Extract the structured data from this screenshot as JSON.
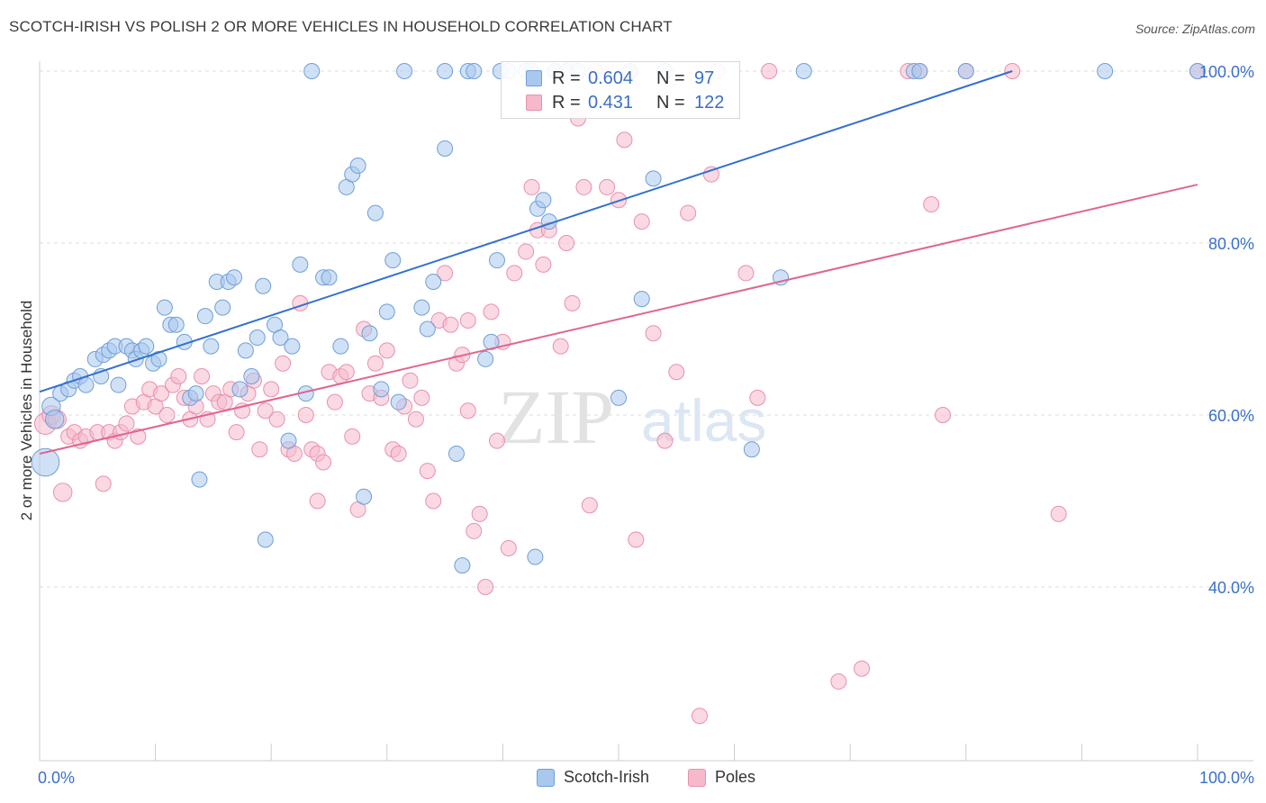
{
  "title": "SCOTCH-IRISH VS POLISH 2 OR MORE VEHICLES IN HOUSEHOLD CORRELATION CHART",
  "source": "Source: ZipAtlas.com",
  "watermark": {
    "zip": "ZIP",
    "atlas": "atlas"
  },
  "legend": {
    "r_label": "R =",
    "n_label": "N =",
    "series1": {
      "r": "0.604",
      "n": "97"
    },
    "series2": {
      "r": "0.431",
      "n": "122"
    }
  },
  "bottom_legend": {
    "series1": "Scotch-Irish",
    "series2": "Poles"
  },
  "colors": {
    "blue_fill": "#a9c8ee",
    "blue_stroke": "#6f9fd8",
    "blue_line": "#3270d0",
    "pink_fill": "#f6b9cc",
    "pink_stroke": "#e990ad",
    "pink_line": "#e0658f",
    "tick_text": "#3b6fc9",
    "grid": "#dddddd"
  },
  "chart_data": {
    "type": "scatter",
    "title": "SCOTCH-IRISH VS POLISH 2 OR MORE VEHICLES IN HOUSEHOLD CORRELATION CHART",
    "xlabel": "",
    "ylabel": "2 or more Vehicles in Household",
    "xlim": [
      0,
      100
    ],
    "ylim": [
      20,
      102
    ],
    "x_tick_labels": [
      "0.0%",
      "100.0%"
    ],
    "y_ticks": [
      40,
      60,
      80,
      100
    ],
    "y_tick_labels": [
      "40.0%",
      "60.0%",
      "80.0%",
      "100.0%"
    ],
    "series": [
      {
        "name": "Scotch-Irish",
        "r": 0.604,
        "n": 97,
        "trend": {
          "x": [
            0,
            84
          ],
          "y": [
            62.7,
            100.0
          ]
        },
        "points": [
          [
            0.5,
            54.5,
            18
          ],
          [
            1.0,
            61,
            12
          ],
          [
            1.3,
            59.5,
            12
          ],
          [
            1.8,
            62.5,
            10
          ],
          [
            2.5,
            63,
            10
          ],
          [
            3,
            64,
            10
          ],
          [
            3.5,
            64.5,
            10
          ],
          [
            4,
            63.5,
            10
          ],
          [
            4.8,
            66.5,
            10
          ],
          [
            5.3,
            64.5,
            10
          ],
          [
            5.5,
            67,
            10
          ],
          [
            6,
            67.5,
            10
          ],
          [
            6.5,
            68,
            10
          ],
          [
            6.8,
            63.5,
            10
          ],
          [
            7.5,
            68,
            10
          ],
          [
            8,
            67.5,
            10
          ],
          [
            8.3,
            66.5,
            10
          ],
          [
            8.8,
            67.5,
            10
          ],
          [
            9.2,
            68,
            10
          ],
          [
            9.8,
            66,
            10
          ],
          [
            10.3,
            66.5,
            10
          ],
          [
            10.8,
            72.5,
            10
          ],
          [
            11.3,
            70.5,
            10
          ],
          [
            11.8,
            70.5,
            10
          ],
          [
            12.5,
            68.5,
            10
          ],
          [
            13,
            62,
            10
          ],
          [
            13.5,
            62.5,
            10
          ],
          [
            13.8,
            52.5,
            10
          ],
          [
            14.3,
            71.5,
            10
          ],
          [
            14.8,
            68,
            10
          ],
          [
            15.3,
            75.5,
            10
          ],
          [
            15.8,
            72.5,
            10
          ],
          [
            16.3,
            75.5,
            10
          ],
          [
            16.8,
            76,
            10
          ],
          [
            17.3,
            63,
            10
          ],
          [
            17.8,
            67.5,
            10
          ],
          [
            18.3,
            64.5,
            10
          ],
          [
            18.8,
            69,
            10
          ],
          [
            19.3,
            75,
            10
          ],
          [
            19.5,
            45.5,
            10
          ],
          [
            20.3,
            70.5,
            10
          ],
          [
            20.8,
            69,
            10
          ],
          [
            21.5,
            57,
            10
          ],
          [
            21.8,
            68,
            10
          ],
          [
            22.5,
            77.5,
            10
          ],
          [
            23,
            62.5,
            10
          ],
          [
            23.5,
            100,
            10
          ],
          [
            24.5,
            76,
            10
          ],
          [
            25,
            76,
            10
          ],
          [
            26,
            68,
            10
          ],
          [
            26.5,
            86.5,
            10
          ],
          [
            27,
            88,
            10
          ],
          [
            27.5,
            89,
            10
          ],
          [
            28,
            50.5,
            10
          ],
          [
            28.5,
            69.5,
            10
          ],
          [
            29,
            83.5,
            10
          ],
          [
            29.5,
            63,
            10
          ],
          [
            30,
            72,
            10
          ],
          [
            30.5,
            78,
            10
          ],
          [
            31,
            61.5,
            10
          ],
          [
            31.5,
            100,
            10
          ],
          [
            33,
            72.5,
            10
          ],
          [
            33.5,
            70,
            10
          ],
          [
            34,
            75.5,
            10
          ],
          [
            35,
            91,
            10
          ],
          [
            35,
            100,
            10
          ],
          [
            36,
            55.5,
            10
          ],
          [
            36.5,
            42.5,
            10
          ],
          [
            37,
            100,
            10
          ],
          [
            37.5,
            100,
            10
          ],
          [
            38.5,
            66.5,
            10
          ],
          [
            39,
            68.5,
            10
          ],
          [
            39.5,
            78,
            10
          ],
          [
            39.8,
            100,
            10
          ],
          [
            40.5,
            100,
            10
          ],
          [
            42,
            100,
            10
          ],
          [
            42.5,
            100,
            10
          ],
          [
            42.8,
            43.5,
            10
          ],
          [
            43,
            84,
            10
          ],
          [
            43.5,
            85,
            10
          ],
          [
            44,
            82.5,
            10
          ],
          [
            44.5,
            100,
            10
          ],
          [
            45.5,
            100,
            10
          ],
          [
            46.5,
            100,
            10
          ],
          [
            50,
            62,
            10
          ],
          [
            51,
            100,
            10
          ],
          [
            52,
            73.5,
            10
          ],
          [
            53,
            87.5,
            10
          ],
          [
            54,
            100,
            10
          ],
          [
            61.5,
            56,
            10
          ],
          [
            64,
            76,
            10
          ],
          [
            66,
            100,
            10
          ],
          [
            75.5,
            100,
            10
          ],
          [
            76,
            100,
            10
          ],
          [
            80,
            100,
            10
          ],
          [
            92,
            100,
            10
          ],
          [
            100,
            100,
            10
          ]
        ]
      },
      {
        "name": "Poles",
        "r": 0.431,
        "n": 122,
        "trend": {
          "x": [
            0,
            100
          ],
          "y": [
            55.5,
            86.8
          ]
        },
        "points": [
          [
            0.5,
            59,
            14
          ],
          [
            1,
            60,
            12
          ],
          [
            1.5,
            59.5,
            12
          ],
          [
            2,
            51,
            12
          ],
          [
            2.5,
            57.5,
            10
          ],
          [
            3,
            58,
            10
          ],
          [
            3.5,
            57,
            10
          ],
          [
            4,
            57.5,
            10
          ],
          [
            5,
            58,
            10
          ],
          [
            5.5,
            52,
            10
          ],
          [
            6,
            58,
            10
          ],
          [
            6.5,
            57,
            10
          ],
          [
            7,
            58,
            10
          ],
          [
            7.5,
            59,
            10
          ],
          [
            8,
            61,
            10
          ],
          [
            8.5,
            57.5,
            10
          ],
          [
            9,
            61.5,
            10
          ],
          [
            9.5,
            63,
            10
          ],
          [
            10,
            61,
            10
          ],
          [
            10.5,
            62.5,
            10
          ],
          [
            11,
            60,
            10
          ],
          [
            11.5,
            63.5,
            10
          ],
          [
            12,
            64.5,
            10
          ],
          [
            12.5,
            62,
            10
          ],
          [
            13,
            59.5,
            10
          ],
          [
            13.5,
            61,
            10
          ],
          [
            14,
            64.5,
            10
          ],
          [
            14.5,
            59.5,
            10
          ],
          [
            15,
            62.5,
            10
          ],
          [
            15.5,
            61.5,
            10
          ],
          [
            16,
            61.5,
            10
          ],
          [
            16.5,
            63,
            10
          ],
          [
            17,
            58,
            10
          ],
          [
            17.5,
            60.5,
            10
          ],
          [
            18,
            62.5,
            10
          ],
          [
            18.5,
            64,
            10
          ],
          [
            19,
            56,
            10
          ],
          [
            19.5,
            60.5,
            10
          ],
          [
            20,
            63,
            10
          ],
          [
            20.5,
            59.5,
            10
          ],
          [
            21,
            66,
            10
          ],
          [
            21.5,
            56,
            10
          ],
          [
            22,
            55.5,
            10
          ],
          [
            22.5,
            73,
            10
          ],
          [
            23,
            60,
            10
          ],
          [
            23.5,
            56,
            10
          ],
          [
            24,
            55.5,
            10
          ],
          [
            24.5,
            54.5,
            10
          ],
          [
            25,
            65,
            10
          ],
          [
            25.5,
            61.5,
            10
          ],
          [
            26,
            64.5,
            10
          ],
          [
            26.5,
            65,
            10
          ],
          [
            27,
            57.5,
            10
          ],
          [
            27.5,
            49,
            10
          ],
          [
            28,
            70,
            10
          ],
          [
            28.5,
            62.5,
            10
          ],
          [
            29,
            66,
            10
          ],
          [
            29.5,
            62,
            10
          ],
          [
            30,
            67.5,
            10
          ],
          [
            30.5,
            56,
            10
          ],
          [
            31,
            55.5,
            10
          ],
          [
            31.5,
            61,
            10
          ],
          [
            32,
            64,
            10
          ],
          [
            32.5,
            59.5,
            10
          ],
          [
            33,
            62,
            10
          ],
          [
            33.5,
            53.5,
            10
          ],
          [
            34,
            50,
            10
          ],
          [
            34.5,
            71,
            10
          ],
          [
            35,
            76.5,
            10
          ],
          [
            35.5,
            70.5,
            10
          ],
          [
            36,
            66,
            10
          ],
          [
            36.5,
            67,
            10
          ],
          [
            37,
            71,
            10
          ],
          [
            37.5,
            46.5,
            10
          ],
          [
            38,
            48.5,
            10
          ],
          [
            38.5,
            40,
            10
          ],
          [
            39,
            72,
            10
          ],
          [
            39.5,
            57,
            10
          ],
          [
            40,
            68.5,
            10
          ],
          [
            40.5,
            44.5,
            10
          ],
          [
            41,
            76.5,
            10
          ],
          [
            42,
            79,
            10
          ],
          [
            42.5,
            86.5,
            10
          ],
          [
            43,
            81.5,
            10
          ],
          [
            43.5,
            77.5,
            10
          ],
          [
            44,
            81.5,
            10
          ],
          [
            45,
            68,
            10
          ],
          [
            45.5,
            80,
            10
          ],
          [
            46,
            73,
            10
          ],
          [
            46.5,
            94.5,
            10
          ],
          [
            47,
            86.5,
            10
          ],
          [
            47.5,
            49.5,
            10
          ],
          [
            49,
            86.5,
            10
          ],
          [
            50,
            85,
            10
          ],
          [
            50.5,
            92,
            10
          ],
          [
            51,
            100,
            10
          ],
          [
            51.5,
            45.5,
            10
          ],
          [
            52,
            82.5,
            10
          ],
          [
            53,
            69.5,
            10
          ],
          [
            54,
            57,
            10
          ],
          [
            55,
            65,
            10
          ],
          [
            56,
            83.5,
            10
          ],
          [
            57,
            25,
            10
          ],
          [
            58,
            88,
            10
          ],
          [
            58.5,
            100,
            10
          ],
          [
            61,
            76.5,
            10
          ],
          [
            62,
            62,
            10
          ],
          [
            63,
            100,
            10
          ],
          [
            69,
            29,
            10
          ],
          [
            71,
            30.5,
            10
          ],
          [
            75,
            100,
            10
          ],
          [
            76,
            100,
            10
          ],
          [
            77,
            84.5,
            10
          ],
          [
            78,
            60,
            10
          ],
          [
            80,
            100,
            10
          ],
          [
            84,
            100,
            10
          ],
          [
            88,
            48.5,
            10
          ],
          [
            48,
            100,
            10
          ],
          [
            44.5,
            100,
            10
          ],
          [
            100,
            100,
            10
          ],
          [
            24,
            50,
            10
          ],
          [
            37,
            60.5,
            10
          ]
        ]
      }
    ]
  }
}
